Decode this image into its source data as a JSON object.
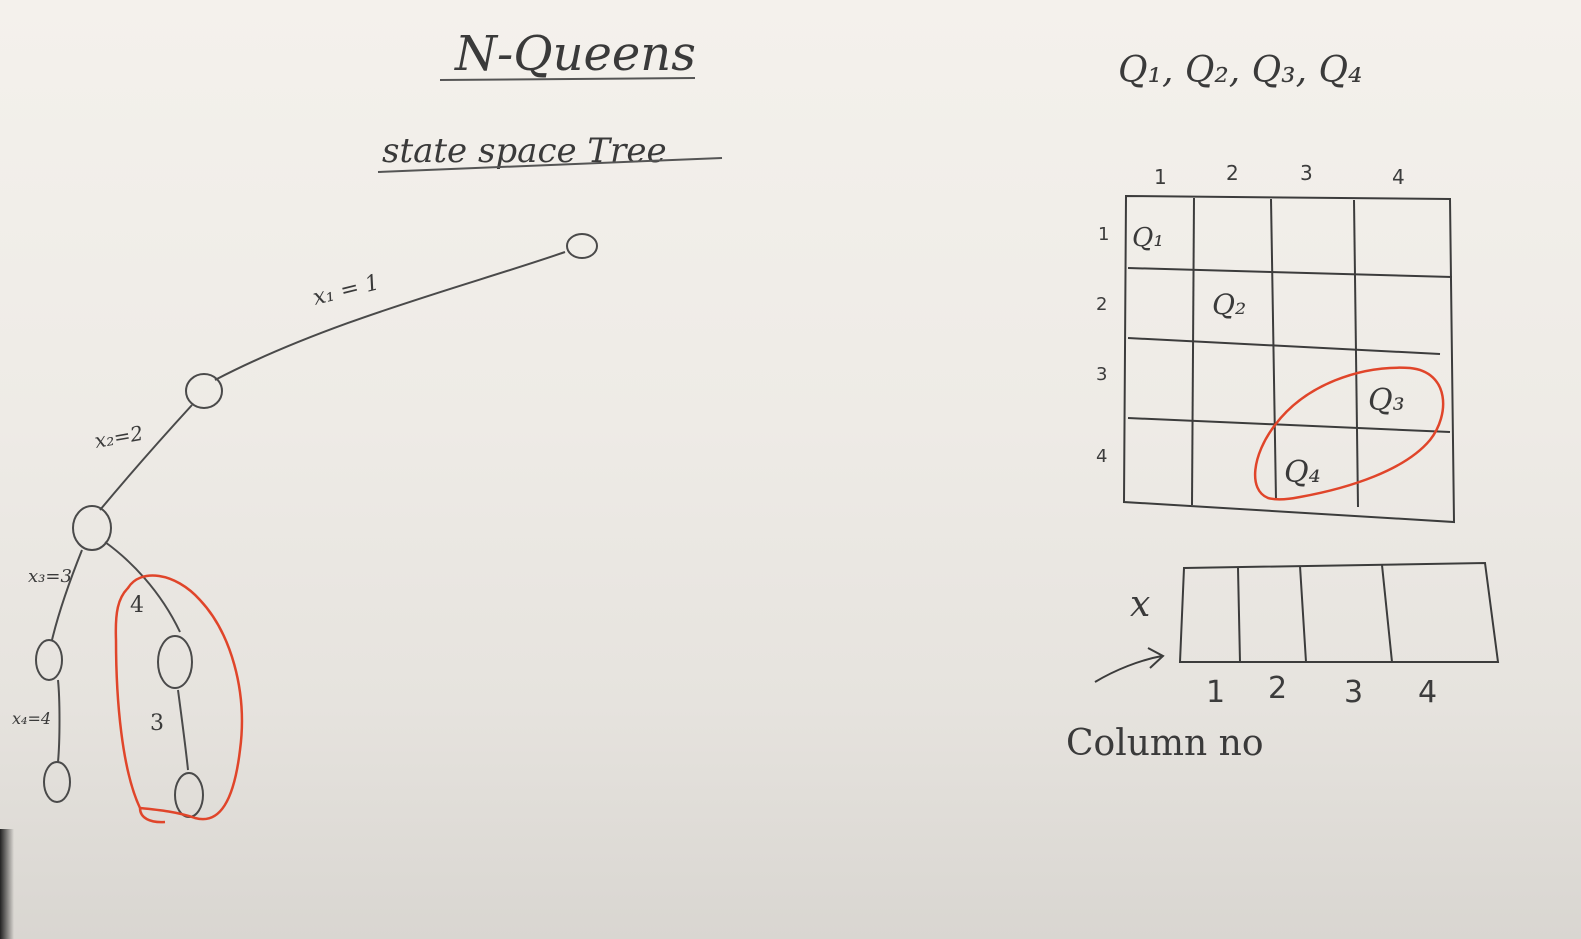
{
  "title": "N-Queens",
  "subtitle": "state space Tree",
  "queens_header": "Q₁, Q₂, Q₃, Q₄",
  "tree": {
    "edge_labels": {
      "x1": "x₁ = 1",
      "x2": "x₂=2",
      "x3": "x₃=3",
      "x4": "x₄=4",
      "alt_x3": "4",
      "alt_x4": "3"
    },
    "highlight_color": "#e0452a"
  },
  "board": {
    "size": 4,
    "col_labels": [
      "1",
      "2",
      "3",
      "4"
    ],
    "row_labels": [
      "1",
      "2",
      "3",
      "4"
    ],
    "queens": [
      {
        "label": "Q₁",
        "row": 1,
        "col": 1
      },
      {
        "label": "Q₂",
        "row": 2,
        "col": 2
      },
      {
        "label": "Q₃",
        "row": 3,
        "col": 4
      },
      {
        "label": "Q₄",
        "row": 4,
        "col": 3
      }
    ]
  },
  "array": {
    "name": "x",
    "index_labels": [
      "1",
      "2",
      "3",
      "4"
    ],
    "caption": "Column no"
  }
}
